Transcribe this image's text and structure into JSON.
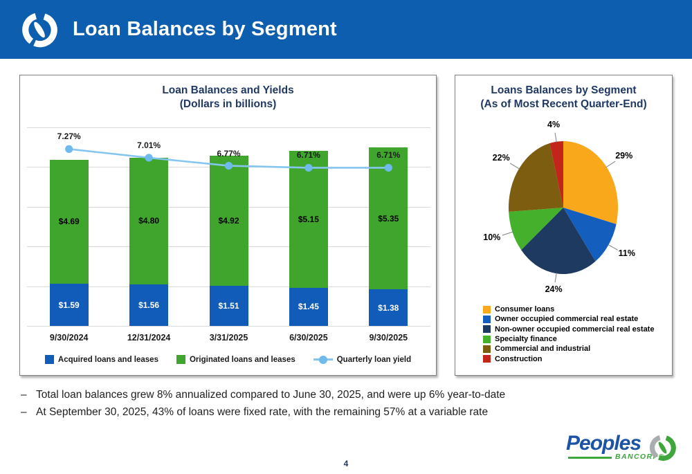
{
  "header": {
    "title": "Loan Balances by Segment"
  },
  "colors": {
    "header_bg": "#0D5EAE",
    "title_navy": "#1F3864",
    "bar_blue": "#125CB9",
    "bar_green": "#3FA52D",
    "yield_line": "#85C6F1",
    "yield_marker": "#6FBAEC",
    "gridline": "#D9D9D9",
    "logo_blue": "#1D53A6",
    "logo_green": "#3EA63C"
  },
  "chart_data": [
    {
      "type": "bar",
      "title": "Loan Balances and Yields",
      "subtitle": "(Dollars in billions)",
      "categories": [
        "9/30/2024",
        "12/31/2024",
        "3/31/2025",
        "6/30/2025",
        "9/30/2025"
      ],
      "series": [
        {
          "name": "Acquired loans and leases",
          "type": "bar",
          "color": "#125CB9",
          "values": [
            1.59,
            1.56,
            1.51,
            1.45,
            1.38
          ],
          "labels": [
            "$1.59",
            "$1.56",
            "$1.51",
            "$1.45",
            "$1.38"
          ]
        },
        {
          "name": "Originated loans and leases",
          "type": "bar",
          "color": "#3FA52D",
          "values": [
            4.69,
            4.8,
            4.92,
            5.15,
            5.35
          ],
          "labels": [
            "$4.69",
            "$4.80",
            "$4.92",
            "$5.15",
            "$5.35"
          ]
        },
        {
          "name": "Quarterly loan yield",
          "type": "line",
          "color": "#85C6F1",
          "marker_color": "#6FBAEC",
          "values": [
            7.27,
            7.01,
            6.77,
            6.71,
            6.71
          ],
          "labels": [
            "7.27%",
            "7.01%",
            "6.77%",
            "6.71%",
            "6.71%"
          ]
        }
      ],
      "stacked": true,
      "grid": true,
      "ylim": [
        0,
        7.5
      ],
      "y2lim": [
        1.98,
        7.92
      ],
      "legend_position": "bottom"
    },
    {
      "type": "pie",
      "title": "Loans Balances by Segment",
      "subtitle": "(As of Most Recent Quarter-End)",
      "slices": [
        {
          "label": "Consumer loans",
          "value": 29,
          "pct_label": "29%",
          "color": "#F9A81C"
        },
        {
          "label": "Owner occupied commercial real estate",
          "value": 11,
          "pct_label": "11%",
          "color": "#145FBE"
        },
        {
          "label": "Non-owner occupied commercial real estate",
          "value": 24,
          "pct_label": "24%",
          "color": "#1F3A60"
        },
        {
          "label": "Specialty finance",
          "value": 10,
          "pct_label": "10%",
          "color": "#44B02C"
        },
        {
          "label": "Commercial and industrial",
          "value": 22,
          "pct_label": "22%",
          "color": "#7D5E10"
        },
        {
          "label": "Construction",
          "value": 4,
          "pct_label": "4%",
          "color": "#C2251A"
        }
      ],
      "start_angle_deg": 0,
      "direction": "clockwise",
      "legend_position": "bottom-left"
    }
  ],
  "bullets": [
    "Total loan balances grew 8% annualized compared to June 30, 2025, and were up 6% year-to-date",
    "At September 30, 2025, 43% of loans were fixed rate, with the remaining 57% at a variable rate"
  ],
  "bullet_char": "–",
  "footer": {
    "logo_text": "Peoples",
    "logo_subtext": "BANCORP®",
    "page_number": "4"
  }
}
